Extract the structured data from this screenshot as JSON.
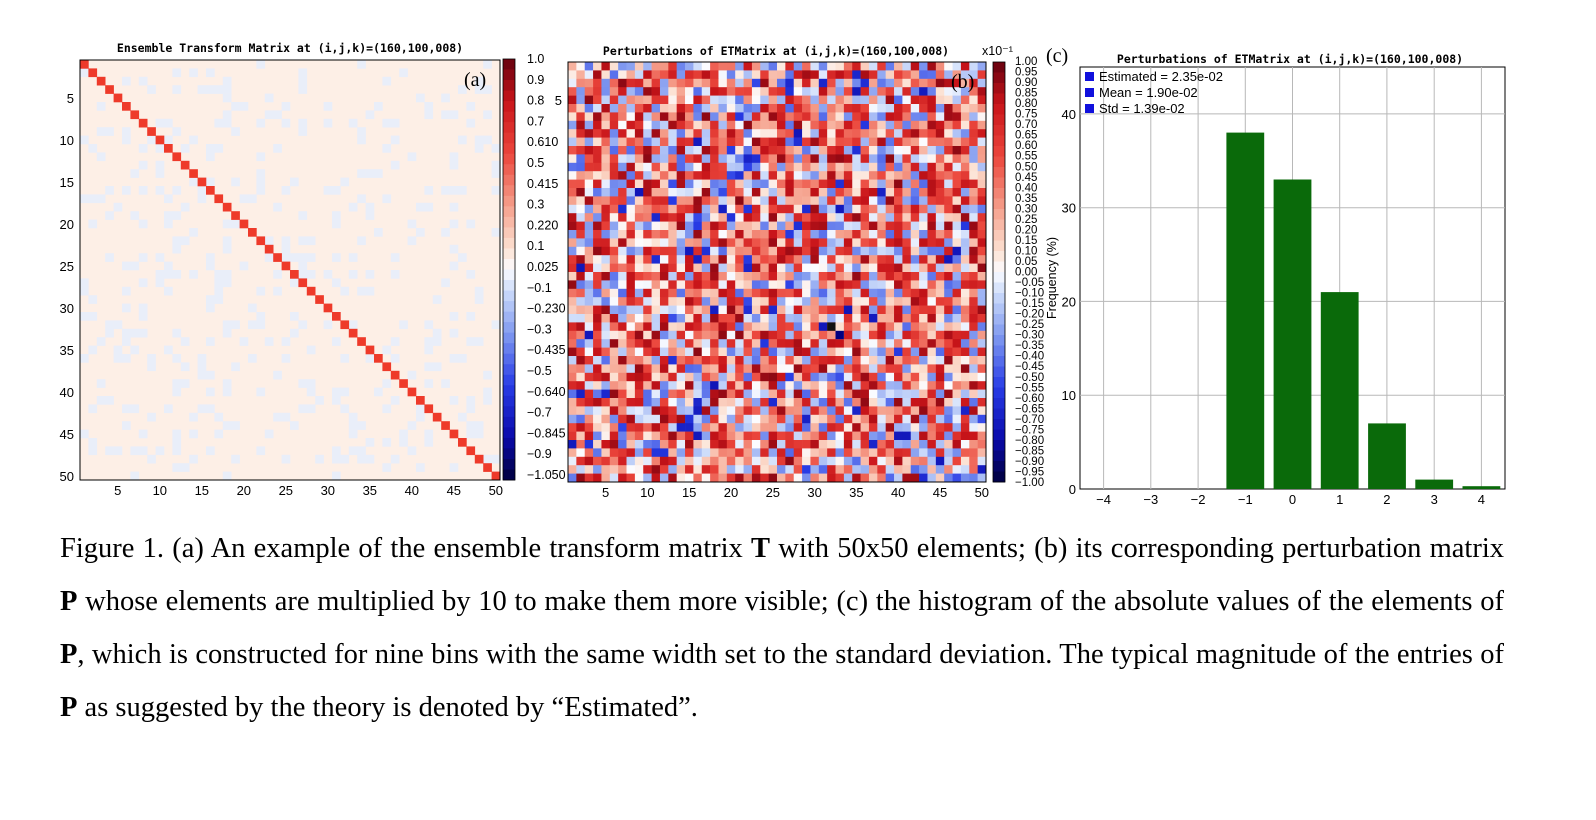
{
  "panel_a": {
    "title": "Ensemble Transform Matrix at (i,j,k)=(160,100,008)",
    "label": "(a)",
    "x_ticks": [
      "5",
      "10",
      "15",
      "20",
      "25",
      "30",
      "35",
      "40",
      "45",
      "50"
    ],
    "y_ticks": [
      "5",
      "10",
      "15",
      "20",
      "25",
      "30",
      "35",
      "40",
      "45",
      "50"
    ],
    "colorbar_labels": [
      "1.0",
      "0.9",
      "0.8",
      "0.7",
      "0.610",
      "0.5",
      "0.415",
      "0.3",
      "0.220",
      "0.1",
      "0.025",
      "−0.1",
      "−0.230",
      "−0.3",
      "−0.435",
      "−0.5",
      "−0.640",
      "−0.7",
      "−0.845",
      "−0.9",
      "−1.050"
    ]
  },
  "panel_b": {
    "title": "Perturbations of ETMatrix at (i,j,k)=(160,100,008)",
    "label": "(b)",
    "scale_label": "x10⁻¹",
    "x_ticks": [
      "5",
      "10",
      "15",
      "20",
      "25",
      "30",
      "35",
      "40",
      "45",
      "50"
    ],
    "y_ticks": [
      "5"
    ],
    "colorbar_labels": [
      "1.00",
      "0.95",
      "0.90",
      "0.85",
      "0.80",
      "0.75",
      "0.70",
      "0.65",
      "0.60",
      "0.55",
      "0.50",
      "0.45",
      "0.40",
      "0.35",
      "0.30",
      "0.25",
      "0.20",
      "0.15",
      "0.10",
      "0.05",
      "0.00",
      "−0.05",
      "−0.10",
      "−0.15",
      "−0.20",
      "−0.25",
      "−0.30",
      "−0.35",
      "−0.40",
      "−0.45",
      "−0.50",
      "−0.55",
      "−0.60",
      "−0.65",
      "−0.70",
      "−0.75",
      "−0.80",
      "−0.85",
      "−0.90",
      "−0.95",
      "−1.00"
    ]
  },
  "panel_c": {
    "title": "Perturbations of ETMatrix at (i,j,k)=(160,100,008)",
    "label": "(c)",
    "ylabel": "Frequency (%)",
    "legend": [
      "Estimated = 2.35e-02",
      "Mean = 1.90e-02",
      "Std = 1.39e-02"
    ],
    "legend_color": "#1010dd",
    "bar_color": "#0a6a0a"
  },
  "chart_data": {
    "type": "bar",
    "title": "Perturbations of ETMatrix at (i,j,k)=(160,100,008)",
    "xlabel": "",
    "ylabel": "Frequency (%)",
    "categories": [
      "−4",
      "−3",
      "−2",
      "−1",
      "0",
      "1",
      "2",
      "3",
      "4"
    ],
    "x": [
      -4,
      -3,
      -2,
      -1,
      0,
      1,
      2,
      3,
      4
    ],
    "values": [
      0,
      0,
      0,
      38,
      33,
      21,
      7,
      1,
      0.3
    ],
    "xlim": [
      -4.5,
      4.5
    ],
    "ylim": [
      0,
      45
    ],
    "yticks": [
      0,
      10,
      20,
      30,
      40
    ],
    "grid": true,
    "legend_position": "top-left"
  },
  "caption": {
    "s1": "Figure 1. (a) An example of the ensemble transform matrix ",
    "b1": "T",
    "s2": " with 50x50 elements; (b) its corresponding perturbation matrix ",
    "b2": "P",
    "s3": " whose elements are multiplied by 10 to make them more visible; (c) the histogram of the absolute values of the elements of ",
    "b3": "P",
    "s4": ", which is constructed for nine bins with the same width set to the standard deviation. The typical magnitude of the entries of ",
    "b4": "P",
    "s5": " as suggested by the theory is denoted by “Estimated”."
  }
}
